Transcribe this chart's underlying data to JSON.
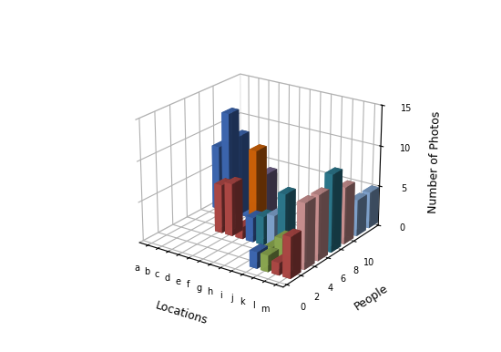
{
  "xlabel": "Locations",
  "ylabel": "People",
  "zlabel": "Number of Photos",
  "locations": [
    "a",
    "b",
    "c",
    "d",
    "e",
    "f",
    "g",
    "h",
    "i",
    "j",
    "k",
    "l",
    "m"
  ],
  "people_ticks": [
    0,
    2,
    4,
    6,
    8,
    10
  ],
  "zlim": [
    0,
    15
  ],
  "bar_specs": [
    [
      0,
      9,
      8.0,
      "#4472c4"
    ],
    [
      1,
      9,
      12.5,
      "#4472c4"
    ],
    [
      2,
      9,
      10.0,
      "#4472c4"
    ],
    [
      3,
      9,
      1.0,
      "#4472c4"
    ],
    [
      3,
      5,
      6.0,
      "#c0504d"
    ],
    [
      4,
      5,
      6.5,
      "#c0504d"
    ],
    [
      5,
      7,
      10.0,
      "#e36c09"
    ],
    [
      5,
      5,
      1.5,
      "#c0504d"
    ],
    [
      6,
      7,
      7.5,
      "#7f6f9a"
    ],
    [
      6,
      7,
      7.0,
      "#9bbb59"
    ],
    [
      6,
      5,
      3.0,
      "#4472c4"
    ],
    [
      7,
      5,
      3.5,
      "#31849b"
    ],
    [
      8,
      5,
      4.0,
      "#8db4e2"
    ],
    [
      9,
      5,
      7.0,
      "#31849b"
    ],
    [
      9,
      3,
      1.5,
      "#9bbb59"
    ],
    [
      9,
      1,
      2.0,
      "#4472c4"
    ],
    [
      10,
      3,
      3.0,
      "#9bbb59"
    ],
    [
      10,
      1,
      2.0,
      "#9bbb59"
    ],
    [
      11,
      3,
      1.5,
      "#9bbb59"
    ],
    [
      11,
      1,
      1.5,
      "#c0504d"
    ],
    [
      12,
      1,
      5.0,
      "#c0504d"
    ],
    [
      12,
      3,
      8.0,
      "#dfa0a0"
    ],
    [
      12,
      5,
      8.0,
      "#dfa0a0"
    ],
    [
      12,
      7,
      9.5,
      "#31849b"
    ],
    [
      12,
      9,
      7.0,
      "#dfa0a0"
    ],
    [
      12,
      11,
      4.5,
      "#8db4e2"
    ],
    [
      12,
      13,
      4.5,
      "#8db4e2"
    ]
  ],
  "background_color": "#ffffff"
}
